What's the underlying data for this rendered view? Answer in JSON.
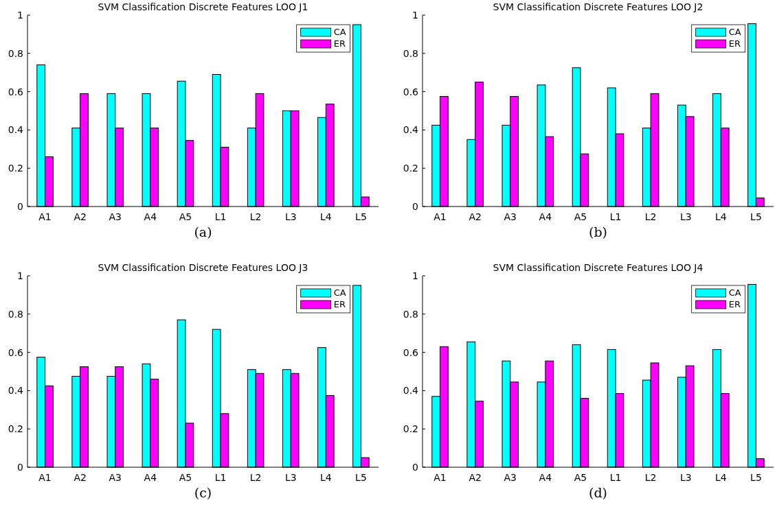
{
  "chart_data": [
    {
      "type": "bar",
      "title": "SVM Classification Discrete Features LOO J1",
      "categories": [
        "A1",
        "A2",
        "A3",
        "A4",
        "A5",
        "L1",
        "L2",
        "L3",
        "L4",
        "L5"
      ],
      "series": [
        {
          "name": "CA",
          "color": "#00ffff",
          "values": [
            0.74,
            0.41,
            0.59,
            0.59,
            0.655,
            0.69,
            0.41,
            0.5,
            0.465,
            0.95
          ]
        },
        {
          "name": "ER",
          "color": "#ff00ff",
          "values": [
            0.26,
            0.59,
            0.41,
            0.41,
            0.345,
            0.31,
            0.59,
            0.5,
            0.535,
            0.05
          ]
        }
      ],
      "ylim": [
        0,
        1
      ],
      "yticks": [
        0,
        0.2,
        0.4,
        0.6,
        0.8,
        1
      ],
      "legend": "top right",
      "annotations": [
        "(a)"
      ]
    },
    {
      "type": "bar",
      "title": "SVM Classification Discrete Features LOO J2",
      "categories": [
        "A1",
        "A2",
        "A3",
        "A4",
        "A5",
        "L1",
        "L2",
        "L3",
        "L4",
        "L5"
      ],
      "series": [
        {
          "name": "CA",
          "color": "#00ffff",
          "values": [
            0.425,
            0.35,
            0.425,
            0.635,
            0.725,
            0.62,
            0.41,
            0.53,
            0.59,
            0.955
          ]
        },
        {
          "name": "ER",
          "color": "#ff00ff",
          "values": [
            0.575,
            0.65,
            0.575,
            0.365,
            0.275,
            0.38,
            0.59,
            0.47,
            0.41,
            0.045
          ]
        }
      ],
      "ylim": [
        0,
        1
      ],
      "yticks": [
        0,
        0.2,
        0.4,
        0.6,
        0.8,
        1
      ],
      "legend": "top right",
      "annotations": [
        "(b)"
      ]
    },
    {
      "type": "bar",
      "title": "SVM Classification Discrete Features LOO J3",
      "categories": [
        "A1",
        "A2",
        "A3",
        "A4",
        "A5",
        "L1",
        "L2",
        "L3",
        "L4",
        "L5"
      ],
      "series": [
        {
          "name": "CA",
          "color": "#00ffff",
          "values": [
            0.575,
            0.475,
            0.475,
            0.54,
            0.77,
            0.72,
            0.51,
            0.51,
            0.625,
            0.95
          ]
        },
        {
          "name": "ER",
          "color": "#ff00ff",
          "values": [
            0.425,
            0.525,
            0.525,
            0.46,
            0.23,
            0.28,
            0.49,
            0.49,
            0.375,
            0.05
          ]
        }
      ],
      "ylim": [
        0,
        1
      ],
      "yticks": [
        0,
        0.2,
        0.4,
        0.6,
        0.8,
        1
      ],
      "legend": "top right",
      "annotations": [
        "(c)"
      ]
    },
    {
      "type": "bar",
      "title": "SVM Classification Discrete Features LOO J4",
      "categories": [
        "A1",
        "A2",
        "A3",
        "A4",
        "A5",
        "L1",
        "L2",
        "L3",
        "L4",
        "L5"
      ],
      "series": [
        {
          "name": "CA",
          "color": "#00ffff",
          "values": [
            0.37,
            0.655,
            0.555,
            0.445,
            0.64,
            0.615,
            0.455,
            0.47,
            0.615,
            0.955
          ]
        },
        {
          "name": "ER",
          "color": "#ff00ff",
          "values": [
            0.63,
            0.345,
            0.445,
            0.555,
            0.36,
            0.385,
            0.545,
            0.53,
            0.385,
            0.045
          ]
        }
      ],
      "ylim": [
        0,
        1
      ],
      "yticks": [
        0,
        0.2,
        0.4,
        0.6,
        0.8,
        1
      ],
      "legend": "top right",
      "annotations": [
        "(d)"
      ]
    }
  ]
}
